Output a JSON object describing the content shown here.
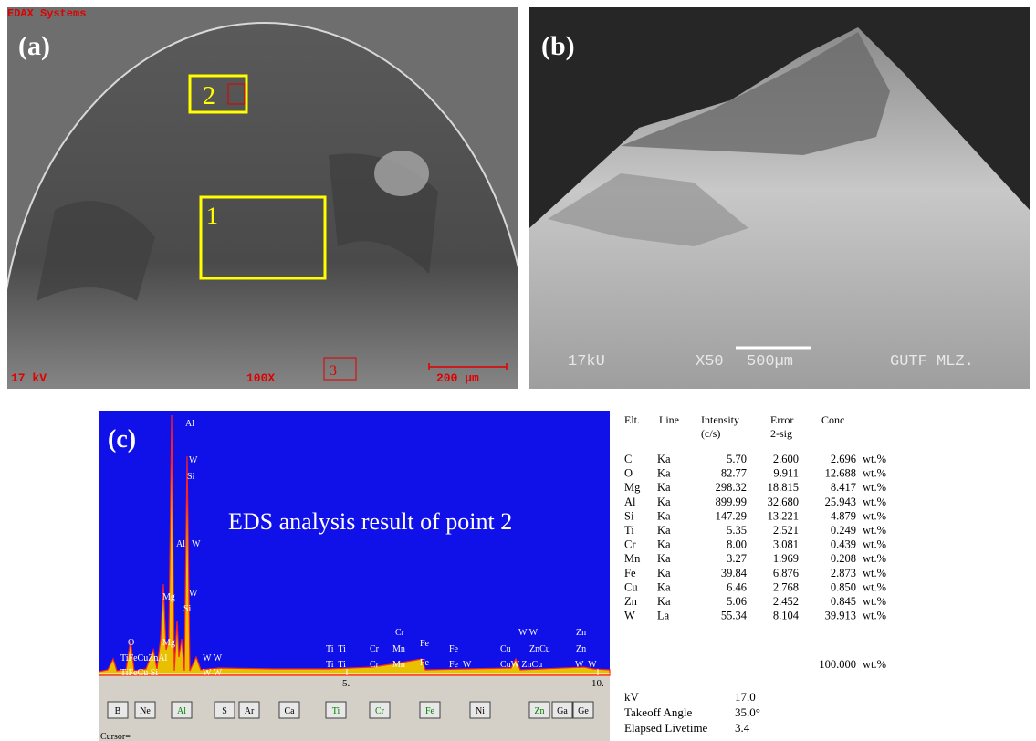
{
  "panel_a": {
    "label": "(a)",
    "header": "EDAX Systems",
    "box_labels": [
      "2",
      "1",
      "3"
    ],
    "voltage": "17 kV",
    "magnification": "100X",
    "scale_bar": "200 µm"
  },
  "panel_b": {
    "label": "(b)",
    "voltage": "17kU",
    "magnification": "X50",
    "scale_bar": "500µm",
    "operator": "GUTF MLZ."
  },
  "panel_c": {
    "label": "(c)",
    "caption": "EDS analysis result of point 2",
    "axis_ticks": [
      "5.",
      "10."
    ],
    "peak_labels": [
      "Al",
      "W",
      "Si",
      "Al",
      "W",
      "Mg",
      "Si",
      "W",
      "O",
      "Mg",
      "TiFeCuZnAl",
      "W W",
      "TiFeCu Si",
      "W W",
      "Ti  Ti",
      "Cr",
      "Cr",
      "Mn",
      "Fe",
      "Fe",
      "W W",
      "Cu",
      "ZnCu",
      "Zn",
      "Zn",
      "Ti  Ti",
      "Cr",
      "Mn",
      "Fe",
      "Fe  W",
      "CuW ZnCu",
      "W  W"
    ],
    "element_buttons": [
      "B",
      "Ne",
      "Al",
      "S",
      "Ar",
      "Ca",
      "Ti",
      "Cr",
      "Fe",
      "Ni",
      "Zn",
      "Ga",
      "Ge"
    ],
    "cursor": "Cursor="
  },
  "table": {
    "header": [
      [
        "Elt."
      ],
      [
        "Line"
      ],
      [
        "Intensity",
        "(c/s)"
      ],
      [
        "Error",
        "2-sig"
      ],
      [
        "Conc"
      ]
    ],
    "rows": [
      [
        "C",
        "Ka",
        "5.70",
        "2.600",
        "2.696",
        "wt.%"
      ],
      [
        "O",
        "Ka",
        "82.77",
        "9.911",
        "12.688",
        "wt.%"
      ],
      [
        "Mg",
        "Ka",
        "298.32",
        "18.815",
        "8.417",
        "wt.%"
      ],
      [
        "Al",
        "Ka",
        "899.99",
        "32.680",
        "25.943",
        "wt.%"
      ],
      [
        "Si",
        "Ka",
        "147.29",
        "13.221",
        "4.879",
        "wt.%"
      ],
      [
        "Ti",
        "Ka",
        "5.35",
        "2.521",
        "0.249",
        "wt.%"
      ],
      [
        "Cr",
        "Ka",
        "8.00",
        "3.081",
        "0.439",
        "wt.%"
      ],
      [
        "Mn",
        "Ka",
        "3.27",
        "1.969",
        "0.208",
        "wt.%"
      ],
      [
        "Fe",
        "Ka",
        "39.84",
        "6.876",
        "2.873",
        "wt.%"
      ],
      [
        "Cu",
        "Ka",
        "6.46",
        "2.768",
        "0.850",
        "wt.%"
      ],
      [
        "Zn",
        "Ka",
        "5.06",
        "2.452",
        "0.845",
        "wt.%"
      ],
      [
        "W",
        "La",
        "55.34",
        "8.104",
        "39.913",
        "wt.%"
      ]
    ],
    "total": [
      "100.000",
      "wt.%"
    ],
    "settings": [
      [
        "kV",
        "17.0"
      ],
      [
        "Takeoff Angle",
        "35.0°"
      ],
      [
        "Elapsed Livetime",
        "3.4"
      ]
    ]
  }
}
